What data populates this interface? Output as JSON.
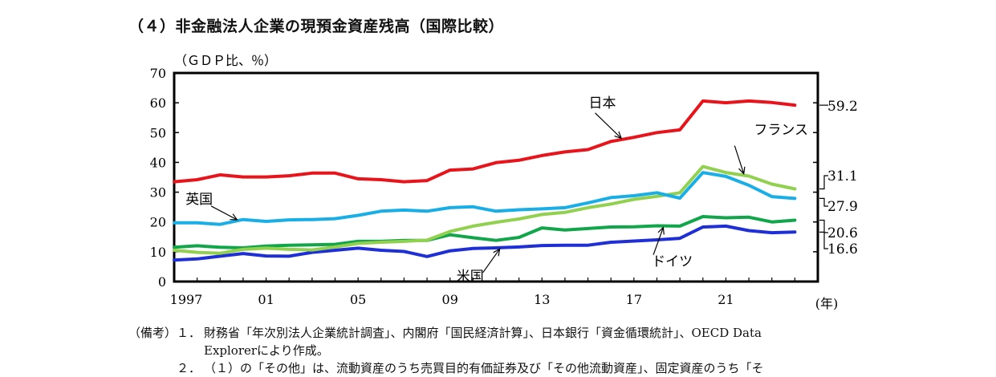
{
  "title": "（４）非金融法人企業の現預金資産残高（国際比較）",
  "chart_data": {
    "type": "line",
    "ylabel": "（ＧＤＰ比、％）",
    "xlabel": "(年)",
    "ylim": [
      0,
      70
    ],
    "yticks": [
      0,
      10,
      20,
      30,
      40,
      50,
      60,
      70
    ],
    "x": [
      1997,
      1998,
      1999,
      2000,
      2001,
      2002,
      2003,
      2004,
      2005,
      2006,
      2007,
      2008,
      2009,
      2010,
      2011,
      2012,
      2013,
      2014,
      2015,
      2016,
      2017,
      2018,
      2019,
      2020,
      2021,
      2022,
      2023,
      2024
    ],
    "xlim": [
      1997,
      2025
    ],
    "xticks": [
      {
        "x": 1997,
        "label": "1997"
      },
      {
        "x": 2001,
        "label": "01"
      },
      {
        "x": 2005,
        "label": "05"
      },
      {
        "x": 2009,
        "label": "09"
      },
      {
        "x": 2013,
        "label": "13"
      },
      {
        "x": 2017,
        "label": "17"
      },
      {
        "x": 2021,
        "label": "21"
      }
    ],
    "grid": false,
    "series": [
      {
        "name": "日本",
        "color": "#e8141b",
        "values": [
          33.5,
          34.2,
          35.8,
          35.1,
          35.1,
          35.5,
          36.4,
          36.4,
          34.5,
          34.2,
          33.5,
          33.9,
          37.4,
          37.8,
          39.9,
          40.7,
          42.3,
          43.5,
          44.3,
          47.0,
          48.4,
          50.0,
          50.9,
          60.6,
          60.0,
          60.6,
          60.1,
          59.2
        ],
        "end_label": "59.2"
      },
      {
        "name": "フランス",
        "color": "#92d050",
        "values": [
          10.5,
          9.8,
          9.5,
          10.8,
          11.2,
          10.8,
          10.6,
          11.6,
          12.8,
          13.2,
          13.5,
          13.9,
          16.8,
          18.6,
          19.9,
          21.0,
          22.5,
          23.2,
          24.8,
          26.0,
          27.6,
          28.6,
          29.8,
          38.6,
          36.6,
          35.4,
          32.7,
          31.1
        ],
        "end_label": "31.1"
      },
      {
        "name": "英国",
        "color": "#1aaee6",
        "values": [
          19.7,
          19.7,
          19.2,
          20.8,
          20.2,
          20.7,
          20.8,
          21.1,
          22.2,
          23.6,
          24.0,
          23.6,
          24.8,
          25.1,
          23.6,
          24.1,
          24.4,
          24.8,
          26.4,
          28.2,
          28.8,
          29.8,
          28.0,
          36.6,
          35.3,
          32.3,
          28.5,
          27.9
        ],
        "end_label": "27.9"
      },
      {
        "name": "ドイツ",
        "color": "#11a64a",
        "values": [
          11.5,
          12.0,
          11.5,
          11.3,
          11.9,
          12.2,
          12.3,
          12.5,
          13.5,
          13.5,
          13.8,
          13.8,
          15.7,
          14.7,
          13.8,
          14.8,
          18.0,
          17.3,
          17.8,
          18.3,
          18.4,
          18.7,
          18.6,
          21.8,
          21.4,
          21.6,
          20.0,
          20.6
        ],
        "end_label": "20.6"
      },
      {
        "name": "米国",
        "color": "#1f2fd6",
        "values": [
          7.2,
          7.6,
          8.5,
          9.4,
          8.6,
          8.5,
          9.8,
          10.5,
          11.2,
          10.5,
          10.1,
          8.4,
          10.3,
          11.1,
          11.3,
          11.6,
          12.1,
          12.2,
          12.2,
          13.2,
          13.6,
          14.0,
          14.5,
          18.3,
          18.6,
          17.1,
          16.4,
          16.6
        ],
        "end_label": "16.6"
      }
    ],
    "annotations": [
      {
        "series": "日本",
        "text": "日本",
        "at_x": 2016.5
      },
      {
        "series": "フランス",
        "text": "フランス",
        "at_x": 2021.8
      },
      {
        "series": "英国",
        "text": "英国",
        "at_x": 1999.8
      },
      {
        "series": "ドイツ",
        "text": "ドイツ",
        "at_x": 2018.3
      },
      {
        "series": "米国",
        "text": "米国",
        "at_x": 2011.2
      }
    ]
  },
  "notes": {
    "label": "（備考）",
    "items": [
      {
        "num": "１．",
        "text": "財務省「年次別法人企業統計調査」、内閣府「国民経済計算」、日本銀行「資金循環統計」、OECD Data",
        "cont": "Explorerにより作成。"
      },
      {
        "num": "２．",
        "text": "（１）の「その他」は、流動資産のうち売買目的有価証券及び「その他流動資産」、固定資産のうち「そ"
      }
    ]
  }
}
